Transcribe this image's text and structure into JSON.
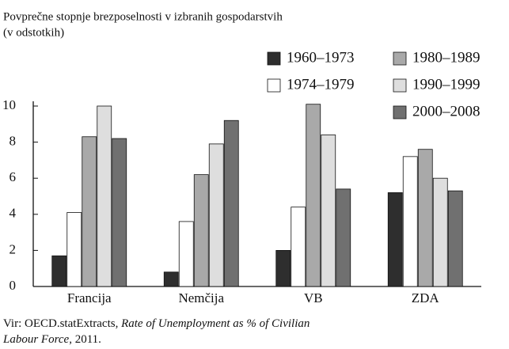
{
  "chart_data": {
    "type": "bar",
    "title": "Povprečne stopnje brezposelnosti v izbranih gospodarstvih",
    "subtitle": "(v odstotkih)",
    "categories": [
      "Francija",
      "Nemčija",
      "VB",
      "ZDA"
    ],
    "series": [
      {
        "name": "1960–1973",
        "color": "#2e2e2e",
        "values": [
          1.7,
          0.8,
          2.0,
          5.2
        ]
      },
      {
        "name": "1974–1979",
        "color": "#ffffff",
        "values": [
          4.1,
          3.6,
          4.4,
          7.2
        ]
      },
      {
        "name": "1980–1989",
        "color": "#a9a9a9",
        "values": [
          8.3,
          6.2,
          10.1,
          7.6
        ]
      },
      {
        "name": "1990–1999",
        "color": "#dedede",
        "values": [
          10.0,
          7.9,
          8.4,
          6.0
        ]
      },
      {
        "name": "2000–2008",
        "color": "#707070",
        "values": [
          8.2,
          9.2,
          5.4,
          5.3
        ]
      }
    ],
    "ylim": [
      0,
      10
    ],
    "yticks": [
      0,
      2,
      4,
      6,
      8,
      10
    ],
    "grid": false,
    "source": {
      "prefix": "Vir: OECD.statExtracts, ",
      "title": "Rate of Unemployment as % of Civilian Labour Force",
      "suffix": ", 2011."
    }
  }
}
